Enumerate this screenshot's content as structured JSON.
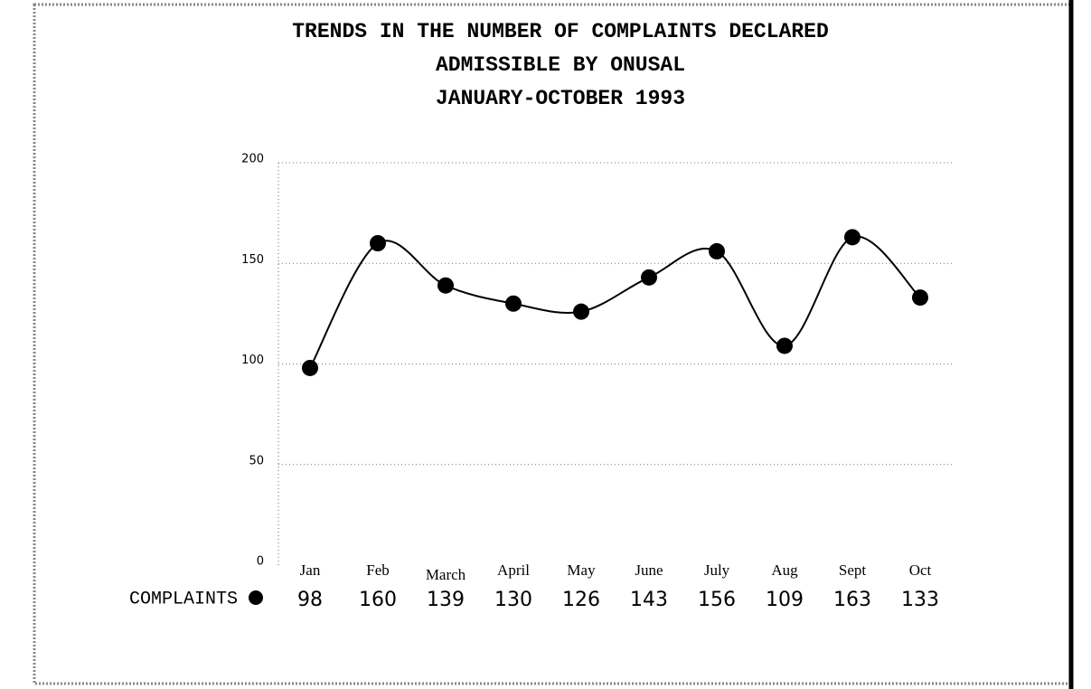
{
  "chart_data": {
    "type": "line",
    "title": [
      "TRENDS IN THE NUMBER OF COMPLAINTS DECLARED",
      "ADMISSIBLE BY ONUSAL",
      "JANUARY-OCTOBER 1993"
    ],
    "categories": [
      "Jan",
      "Feb",
      "March",
      "April",
      "May",
      "June",
      "July",
      "Aug",
      "Sept",
      "Oct"
    ],
    "series": [
      {
        "name": "COMPLAINTS",
        "color": "#000000",
        "values": [
          98,
          160,
          139,
          130,
          126,
          143,
          156,
          109,
          163,
          133
        ]
      }
    ],
    "ylim": [
      0,
      200
    ],
    "yticks": [
      0,
      50,
      100,
      150,
      200
    ],
    "grid": true
  }
}
